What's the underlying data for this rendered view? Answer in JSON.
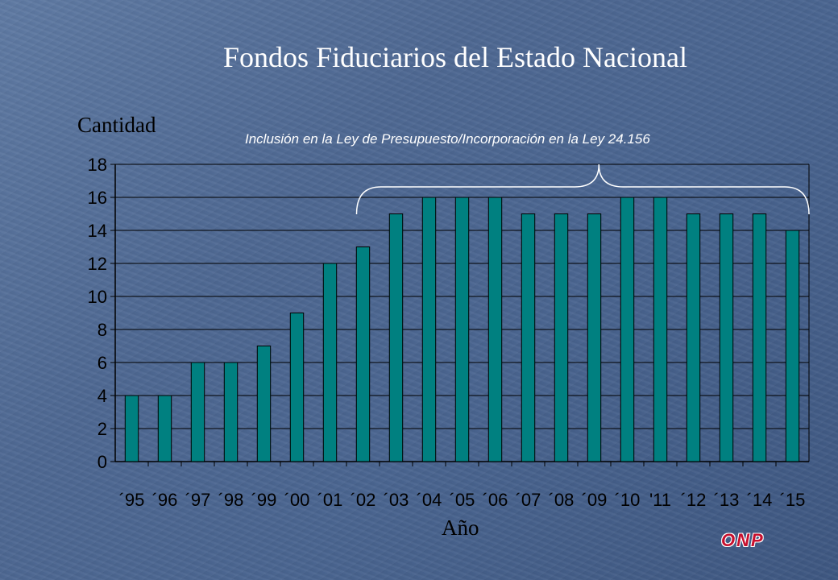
{
  "title": "Fondos Fiduciarios del Estado Nacional",
  "logo_text": "ONP",
  "colors": {
    "bar": "#008080",
    "grid": "#000000",
    "text": "#000000",
    "title": "#ffffff"
  },
  "chart_data": {
    "type": "bar",
    "title": "Fondos Fiduciarios del Estado Nacional",
    "ylabel": "Cantidad",
    "xlabel": "Año",
    "categories": [
      "´95",
      "´96",
      "´97",
      "´98",
      "´99",
      "´00",
      "´01",
      "´02",
      "´03",
      "´04",
      "´05",
      "´06",
      "´07",
      "´08",
      "´09",
      "´10",
      "'11",
      "´12",
      "´13",
      "´14",
      "´15"
    ],
    "values": [
      4,
      4,
      6,
      6,
      7,
      9,
      12,
      13,
      15,
      16,
      16,
      16,
      15,
      15,
      15,
      16,
      16,
      15,
      15,
      15,
      14
    ],
    "ylim": [
      0,
      18
    ],
    "yticks": [
      "0",
      "2",
      "4",
      "6",
      "8",
      "10",
      "12",
      "14",
      "16",
      "18"
    ],
    "grid": true,
    "annotation": "Inclusión en la Ley de Presupuesto/Incorporación en la Ley 24.156"
  }
}
